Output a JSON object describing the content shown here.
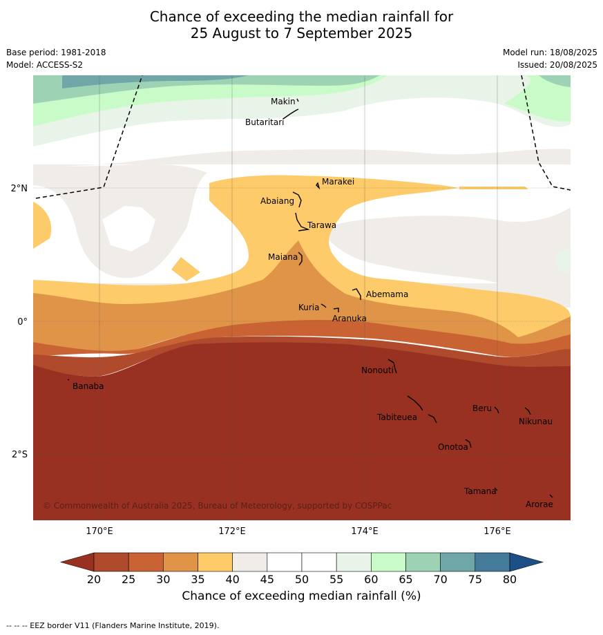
{
  "title": {
    "line1": "Chance of exceeding the median rainfall for",
    "line2": "25 August to 7 September 2025"
  },
  "meta": {
    "base_period": "Base period: 1981-2018",
    "model": "Model: ACCESS-S2",
    "model_run": "Model run: 18/08/2025",
    "issued": "Issued: 20/08/2025"
  },
  "map": {
    "copyright": "© Commonwealth of Australia 2025, Bureau of Meteorology, supported by COSPPac",
    "lat_labels": [
      "2°N",
      "0°",
      "2°S"
    ],
    "lon_labels": [
      "170°E",
      "172°E",
      "174°E",
      "176°E"
    ],
    "places": [
      "Makin",
      "Butaritari",
      "Marakei",
      "Abaiang",
      "Tarawa",
      "Maiana",
      "Abemama",
      "Kuria",
      "Aranuka",
      "Banaba",
      "Nonouti",
      "Tabiteuea",
      "Beru",
      "Nikunau",
      "Onotoa",
      "Tamana",
      "Arorae"
    ]
  },
  "colorbar": {
    "title": "Chance of exceeding median rainfall (%)",
    "ticks": [
      "20",
      "25",
      "30",
      "35",
      "40",
      "45",
      "50",
      "55",
      "60",
      "65",
      "70",
      "75",
      "80"
    ],
    "colors": [
      "#983121",
      "#b04a2c",
      "#c96334",
      "#e09448",
      "#fdcb69",
      "#f0ece7",
      "#ffffff",
      "#ffffff",
      "#e8f4e8",
      "#c9fbc9",
      "#9dd2b5",
      "#6fa6a8",
      "#437b99",
      "#1c4f86"
    ]
  },
  "footer": "--  --  -- EEZ border V11 (Flanders Marine Institute, 2019)."
}
